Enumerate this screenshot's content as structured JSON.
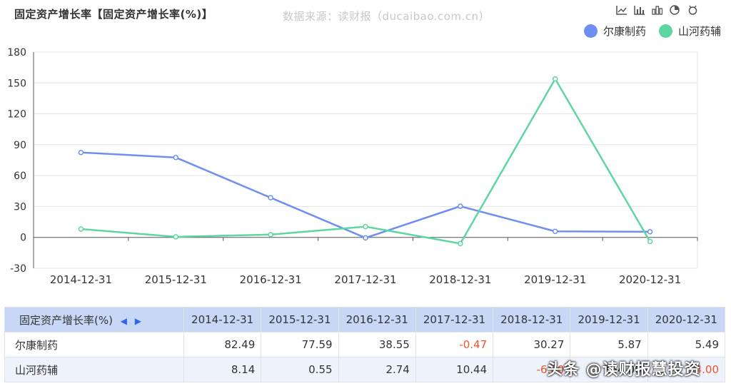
{
  "title": "固定资产增长率【固定资产增长率(%)】",
  "source": "数据来源：读财报（ducaibao.com.cn）",
  "toolbox": [
    "line-chart-icon",
    "bar-chart-icon",
    "stacked-bar-icon",
    "pie-chart-icon",
    "restore-icon"
  ],
  "colors": {
    "s1": "#6f8ff0",
    "s2": "#5ed6a2",
    "neg": "#f0522a"
  },
  "chart_data": {
    "type": "line",
    "title": "固定资产增长率【固定资产增长率(%)】",
    "categories": [
      "2014-12-31",
      "2015-12-31",
      "2016-12-31",
      "2017-12-31",
      "2018-12-31",
      "2019-12-31",
      "2020-12-31"
    ],
    "series": [
      {
        "name": "尔康制药",
        "values": [
          82.49,
          77.59,
          38.55,
          -0.47,
          30.27,
          5.87,
          5.49
        ]
      },
      {
        "name": "山河药辅",
        "values": [
          8.14,
          0.55,
          2.74,
          10.44,
          -6.0,
          154.0,
          -4.0
        ]
      }
    ],
    "yticks": [
      "180",
      "150",
      "120",
      "90",
      "60",
      "30",
      "0",
      "-30"
    ],
    "ylim": [
      -30,
      180
    ],
    "grid": true,
    "legend": "top-right"
  },
  "table": {
    "header": "固定资产增长率(%)",
    "columns": [
      "2014-12-31",
      "2015-12-31",
      "2016-12-31",
      "2017-12-31",
      "2018-12-31",
      "2019-12-31",
      "2020-12-31"
    ],
    "rows": [
      {
        "name": "尔康制药",
        "cells": [
          "82.49",
          "77.59",
          "38.55",
          "-0.47",
          "30.27",
          "5.87",
          "5.49"
        ]
      },
      {
        "name": "山河药辅",
        "cells": [
          "8.14",
          "0.55",
          "2.74",
          "10.44",
          "-6.00",
          "154.00",
          "-4.00"
        ]
      }
    ]
  },
  "watermark": "头条 @读财报慧投资"
}
